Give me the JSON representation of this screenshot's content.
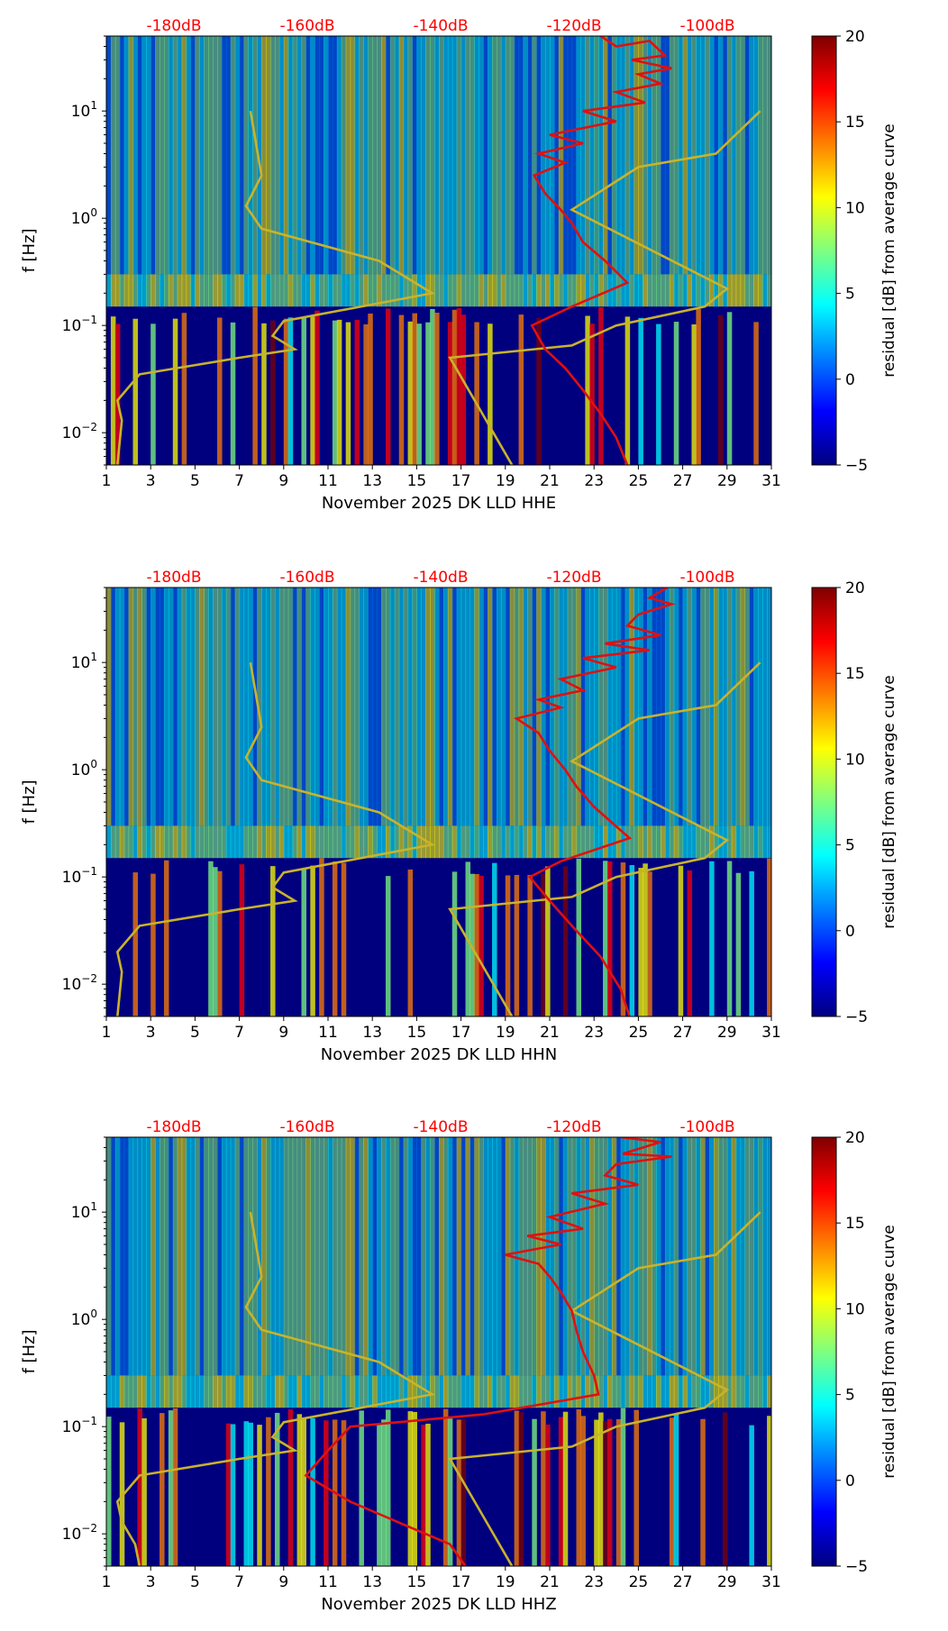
{
  "chart_data": [
    {
      "type": "heatmap",
      "channel": "HHE",
      "xlabel": "November 2025 DK LLD  HHE",
      "ylabel": "f [Hz]",
      "x_ticks": [
        "1",
        "3",
        "5",
        "7",
        "9",
        "11",
        "13",
        "15",
        "17",
        "19",
        "21",
        "23",
        "25",
        "27",
        "29",
        "31"
      ],
      "x_range": [
        1,
        31
      ],
      "y_ticks": [
        {
          "exp": "-2",
          "value": 0.01
        },
        {
          "exp": "-1",
          "value": 0.1
        },
        {
          "exp": "0",
          "value": 1
        },
        {
          "exp": "1",
          "value": 10
        }
      ],
      "y_range": [
        0.005,
        50
      ],
      "top_labels": [
        "-180dB",
        "-160dB",
        "-140dB",
        "-120dB",
        "-100dB"
      ],
      "colorbar": {
        "label": "residual [dB] from average curve",
        "ticks": [
          "−5",
          "0",
          "5",
          "10",
          "15",
          "20"
        ],
        "range": [
          -5,
          20
        ]
      },
      "red_curve_day_freq": [
        [
          23.3,
          50
        ],
        [
          24.0,
          40
        ],
        [
          25.5,
          45
        ],
        [
          26.2,
          33
        ],
        [
          24.7,
          30
        ],
        [
          26.5,
          25
        ],
        [
          25.0,
          22
        ],
        [
          26.0,
          18
        ],
        [
          24.0,
          15
        ],
        [
          25.3,
          12
        ],
        [
          22.5,
          10
        ],
        [
          24.0,
          8
        ],
        [
          21.0,
          6
        ],
        [
          22.5,
          5
        ],
        [
          20.5,
          4
        ],
        [
          21.7,
          3.3
        ],
        [
          20.3,
          2.5
        ],
        [
          20.8,
          1.7
        ],
        [
          21.5,
          1.2
        ],
        [
          22.0,
          0.9
        ],
        [
          22.5,
          0.6
        ],
        [
          23.5,
          0.4
        ],
        [
          24.5,
          0.25
        ],
        [
          22.0,
          0.15
        ],
        [
          20.2,
          0.1
        ],
        [
          20.8,
          0.06
        ],
        [
          21.7,
          0.04
        ],
        [
          22.5,
          0.025
        ],
        [
          23.3,
          0.015
        ],
        [
          24.0,
          0.009
        ],
        [
          24.5,
          0.005
        ]
      ],
      "yellow_curve_day_freq": [
        [
          1.5,
          0.005
        ],
        [
          1.7,
          0.013
        ],
        [
          1.5,
          0.02
        ],
        [
          2.5,
          0.035
        ],
        [
          7.0,
          0.05
        ],
        [
          9.5,
          0.06
        ],
        [
          8.5,
          0.08
        ],
        [
          9.0,
          0.11
        ],
        [
          15.7,
          0.2
        ],
        [
          13.3,
          0.4
        ],
        [
          8.0,
          0.8
        ],
        [
          7.3,
          1.3
        ],
        [
          8.0,
          2.5
        ],
        [
          7.5,
          10
        ]
      ],
      "yellow_curve2_day_freq": [
        [
          19.3,
          0.005
        ],
        [
          16.5,
          0.05
        ],
        [
          22.0,
          0.065
        ],
        [
          24.0,
          0.1
        ],
        [
          28.0,
          0.15
        ],
        [
          29.0,
          0.22
        ],
        [
          22.0,
          1.2
        ],
        [
          25.0,
          3
        ],
        [
          28.5,
          4
        ],
        [
          30.5,
          10
        ]
      ]
    },
    {
      "type": "heatmap",
      "channel": "HHN",
      "xlabel": "November 2025 DK LLD  HHN",
      "ylabel": "f [Hz]",
      "x_ticks": [
        "1",
        "3",
        "5",
        "7",
        "9",
        "11",
        "13",
        "15",
        "17",
        "19",
        "21",
        "23",
        "25",
        "27",
        "29",
        "31"
      ],
      "x_range": [
        1,
        31
      ],
      "y_ticks": [
        {
          "exp": "-2",
          "value": 0.01
        },
        {
          "exp": "-1",
          "value": 0.1
        },
        {
          "exp": "0",
          "value": 1
        },
        {
          "exp": "1",
          "value": 10
        }
      ],
      "y_range": [
        0.005,
        50
      ],
      "top_labels": [
        "-180dB",
        "-160dB",
        "-140dB",
        "-120dB",
        "-100dB"
      ],
      "colorbar": {
        "label": "residual [dB] from average curve",
        "ticks": [
          "−5",
          "0",
          "5",
          "10",
          "15",
          "20"
        ],
        "range": [
          -5,
          20
        ]
      },
      "red_curve_day_freq": [
        [
          26.3,
          50
        ],
        [
          25.5,
          40
        ],
        [
          26.5,
          35
        ],
        [
          25.0,
          28
        ],
        [
          24.5,
          22
        ],
        [
          26.0,
          18
        ],
        [
          23.5,
          15
        ],
        [
          25.5,
          13
        ],
        [
          22.5,
          11
        ],
        [
          24.0,
          9
        ],
        [
          21.5,
          7
        ],
        [
          22.5,
          5.5
        ],
        [
          20.5,
          4.5
        ],
        [
          21.5,
          3.8
        ],
        [
          19.5,
          3
        ],
        [
          20.5,
          2.2
        ],
        [
          21.0,
          1.5
        ],
        [
          21.7,
          1.0
        ],
        [
          22.2,
          0.7
        ],
        [
          23.0,
          0.45
        ],
        [
          24.6,
          0.23
        ],
        [
          21.5,
          0.14
        ],
        [
          20.1,
          0.1
        ],
        [
          21.0,
          0.06
        ],
        [
          22.0,
          0.035
        ],
        [
          23.3,
          0.018
        ],
        [
          24.2,
          0.009
        ],
        [
          24.6,
          0.005
        ]
      ],
      "yellow_curve_day_freq": [
        [
          1.5,
          0.005
        ],
        [
          1.7,
          0.013
        ],
        [
          1.5,
          0.02
        ],
        [
          2.5,
          0.035
        ],
        [
          7.0,
          0.05
        ],
        [
          9.5,
          0.06
        ],
        [
          8.5,
          0.08
        ],
        [
          9.0,
          0.11
        ],
        [
          15.7,
          0.2
        ],
        [
          13.3,
          0.4
        ],
        [
          8.0,
          0.8
        ],
        [
          7.3,
          1.3
        ],
        [
          8.0,
          2.5
        ],
        [
          7.5,
          10
        ]
      ],
      "yellow_curve2_day_freq": [
        [
          19.3,
          0.005
        ],
        [
          16.5,
          0.05
        ],
        [
          22.0,
          0.065
        ],
        [
          24.0,
          0.1
        ],
        [
          28.0,
          0.15
        ],
        [
          29.0,
          0.22
        ],
        [
          22.0,
          1.2
        ],
        [
          25.0,
          3
        ],
        [
          28.5,
          4
        ],
        [
          30.5,
          10
        ]
      ]
    },
    {
      "type": "heatmap",
      "channel": "HHZ",
      "xlabel": "November 2025 DK LLD  HHZ",
      "ylabel": "f [Hz]",
      "x_ticks": [
        "1",
        "3",
        "5",
        "7",
        "9",
        "11",
        "13",
        "15",
        "17",
        "19",
        "21",
        "23",
        "25",
        "27",
        "29",
        "31"
      ],
      "x_range": [
        1,
        31
      ],
      "y_ticks": [
        {
          "exp": "-2",
          "value": 0.01
        },
        {
          "exp": "-1",
          "value": 0.1
        },
        {
          "exp": "0",
          "value": 1
        },
        {
          "exp": "1",
          "value": 10
        }
      ],
      "y_range": [
        0.005,
        50
      ],
      "top_labels": [
        "-180dB",
        "-160dB",
        "-140dB",
        "-120dB",
        "-100dB"
      ],
      "colorbar": {
        "label": "residual [dB] from average curve",
        "ticks": [
          "−5",
          "0",
          "5",
          "10",
          "15",
          "20"
        ],
        "range": [
          -5,
          20
        ]
      },
      "red_curve_day_freq": [
        [
          24.2,
          50
        ],
        [
          26.0,
          45
        ],
        [
          24.3,
          35
        ],
        [
          26.5,
          33
        ],
        [
          24.0,
          28
        ],
        [
          23.5,
          22
        ],
        [
          25.0,
          18
        ],
        [
          22.0,
          15
        ],
        [
          23.5,
          12
        ],
        [
          21.0,
          9
        ],
        [
          22.5,
          7
        ],
        [
          20.0,
          6
        ],
        [
          21.5,
          5
        ],
        [
          19.0,
          4
        ],
        [
          20.5,
          3.3
        ],
        [
          21.0,
          2.5
        ],
        [
          21.5,
          1.8
        ],
        [
          22.0,
          1.2
        ],
        [
          22.2,
          0.8
        ],
        [
          22.5,
          0.5
        ],
        [
          23.0,
          0.3
        ],
        [
          23.2,
          0.2
        ],
        [
          18.0,
          0.13
        ],
        [
          12.0,
          0.1
        ],
        [
          11.0,
          0.06
        ],
        [
          10.0,
          0.035
        ],
        [
          12.0,
          0.02
        ],
        [
          14.5,
          0.012
        ],
        [
          16.5,
          0.008
        ],
        [
          17.2,
          0.005
        ]
      ],
      "yellow_curve_day_freq": [
        [
          2.5,
          0.005
        ],
        [
          2.3,
          0.008
        ],
        [
          1.7,
          0.013
        ],
        [
          1.5,
          0.02
        ],
        [
          2.5,
          0.035
        ],
        [
          7.0,
          0.05
        ],
        [
          9.5,
          0.06
        ],
        [
          8.5,
          0.08
        ],
        [
          9.0,
          0.11
        ],
        [
          15.7,
          0.2
        ],
        [
          13.3,
          0.4
        ],
        [
          8.0,
          0.8
        ],
        [
          7.3,
          1.3
        ],
        [
          8.0,
          2.5
        ],
        [
          7.5,
          10
        ]
      ],
      "yellow_curve2_day_freq": [
        [
          19.3,
          0.005
        ],
        [
          16.5,
          0.05
        ],
        [
          22.0,
          0.065
        ],
        [
          24.0,
          0.1
        ],
        [
          28.0,
          0.15
        ],
        [
          29.0,
          0.22
        ],
        [
          22.0,
          1.2
        ],
        [
          25.0,
          3
        ],
        [
          28.5,
          4
        ],
        [
          30.5,
          10
        ]
      ]
    }
  ],
  "colors": {
    "yellow_curve": "#c9b32a",
    "red_curve": "#e01010",
    "top_label": "#ff0000",
    "jet_stops": [
      "#00007f",
      "#0000ff",
      "#007fff",
      "#00ffff",
      "#7fff7f",
      "#ffff00",
      "#ff7f00",
      "#ff0000",
      "#7f0000"
    ]
  }
}
